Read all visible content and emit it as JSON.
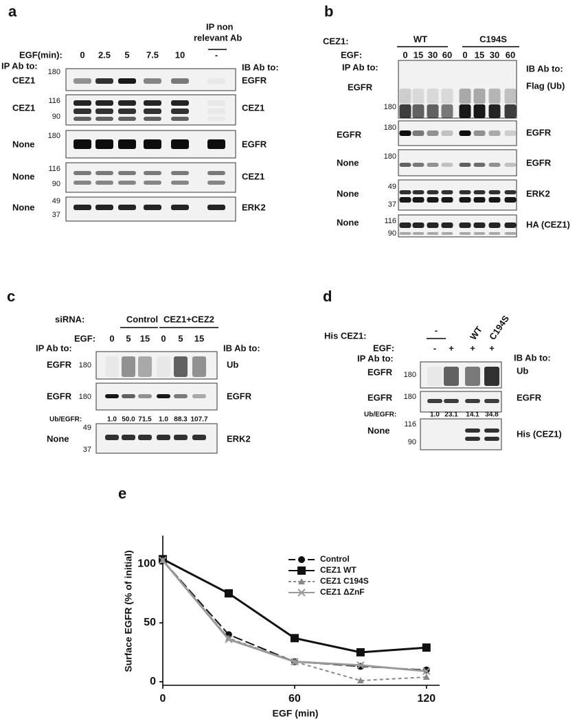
{
  "panel_a": {
    "label": "a",
    "header": [
      "IP non",
      "relevant  Ab"
    ],
    "egf_label": "EGF(min):",
    "egf": [
      "0",
      "2.5",
      "5",
      "7.5",
      "10",
      "-"
    ],
    "ip_label": "IP Ab to:",
    "ib_label": "IB Ab to:",
    "rows": [
      {
        "ip": "CEZ1",
        "mw": [
          "180"
        ],
        "ib": "EGFR"
      },
      {
        "ip": "CEZ1",
        "mw": [
          "116",
          "90"
        ],
        "ib": "CEZ1"
      },
      {
        "ip": "None",
        "mw": [
          "180"
        ],
        "ib": "EGFR"
      },
      {
        "ip": "None",
        "mw": [
          "116",
          "90"
        ],
        "ib": "CEZ1"
      },
      {
        "ip": "None",
        "mw": [
          "49",
          "37"
        ],
        "ib": "ERK2"
      }
    ]
  },
  "panel_b": {
    "label": "b",
    "cez1_label": "CEZ1:",
    "groups": [
      "WT",
      "C194S"
    ],
    "egf_label": "EGF:",
    "egf": [
      "0",
      "15",
      "30",
      "60",
      "0",
      "15",
      "30",
      "60"
    ],
    "ip_label": "IP Ab to:",
    "ib_label": "IB Ab to:",
    "rows": [
      {
        "ip": "EGFR",
        "mw": [
          "180"
        ],
        "ib": "Flag (Ub)"
      },
      {
        "ip": "EGFR",
        "mw": [
          "180"
        ],
        "ib": "EGFR"
      },
      {
        "ip": "None",
        "mw": [
          "180"
        ],
        "ib": "EGFR"
      },
      {
        "ip": "None",
        "mw": [
          "49",
          "37"
        ],
        "ib": "ERK2"
      },
      {
        "ip": "None",
        "mw": [
          "116",
          "90"
        ],
        "ib": "HA (CEZ1)"
      }
    ]
  },
  "panel_c": {
    "label": "c",
    "sirna_label": "siRNA:",
    "groups": [
      "Control",
      "CEZ1+CEZ2"
    ],
    "egf_label": "EGF:",
    "egf": [
      "0",
      "5",
      "15",
      "0",
      "5",
      "15"
    ],
    "ip_label": "IP Ab to:",
    "ib_label": "IB Ab to:",
    "rows": [
      {
        "ip": "EGFR",
        "mw": [
          "180"
        ],
        "ib": "Ub"
      },
      {
        "ip": "EGFR",
        "mw": [
          "180"
        ],
        "ib": "EGFR"
      },
      {
        "ip": "None",
        "mw": [
          "49",
          "37"
        ],
        "ib": "ERK2"
      }
    ],
    "ratio_label": "Ub/EGFR:",
    "ratios": [
      "1.0",
      "50.0",
      "71.5",
      "1.0",
      "88.3",
      "107.7"
    ]
  },
  "panel_d": {
    "label": "d",
    "his_label": "His CEZ1:",
    "groups": [
      "-",
      "WT",
      "C194S"
    ],
    "egf_label": "EGF:",
    "egf": [
      "-",
      "+",
      "+",
      "+"
    ],
    "ip_label": "IP Ab to:",
    "ib_label": "IB Ab to:",
    "rows": [
      {
        "ip": "EGFR",
        "mw": [
          "180"
        ],
        "ib": "Ub"
      },
      {
        "ip": "EGFR",
        "mw": [
          "180"
        ],
        "ib": "EGFR"
      },
      {
        "ip": "None",
        "mw": [
          "116",
          "90"
        ],
        "ib": "His (CEZ1)"
      }
    ],
    "ratio_label": "Ub/EGFR:",
    "ratios": [
      "1.0",
      "23.1",
      "14.1",
      "34.8"
    ]
  },
  "chart_data": {
    "type": "line",
    "panel_label": "e",
    "x_label": "EGF (min)",
    "y_label": "Surface EGFR (% of initial)",
    "x": [
      0,
      30,
      60,
      90,
      120
    ],
    "xlim": [
      0,
      126
    ],
    "xticks": [
      0,
      60,
      120
    ],
    "ylim": [
      -3,
      124
    ],
    "yticks": [
      0,
      50,
      100
    ],
    "series": [
      {
        "name": "Control",
        "color": "#111111",
        "line_style": "dashed",
        "marker": "circle",
        "values": [
          103,
          40,
          17,
          13,
          10
        ]
      },
      {
        "name": "CEZ1 WT",
        "color": "#111111",
        "line_style": "solid",
        "marker": "square",
        "values": [
          104,
          75,
          37,
          25,
          29
        ]
      },
      {
        "name": "CEZ1 C194S",
        "color": "#888888",
        "line_style": "dashed",
        "marker": "triangle",
        "values": [
          103,
          37,
          17,
          1,
          4
        ]
      },
      {
        "name": "CEZ1 ΔZnF",
        "color": "#999999",
        "line_style": "solid",
        "marker": "x",
        "values": [
          103,
          36,
          17,
          14,
          9
        ]
      }
    ]
  }
}
